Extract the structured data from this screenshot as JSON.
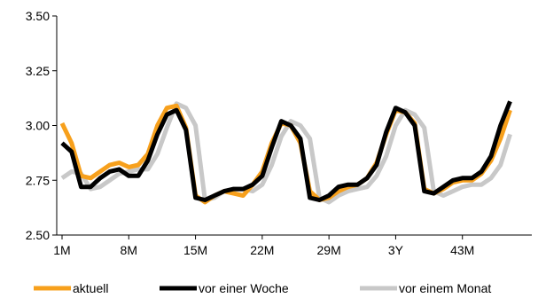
{
  "chart_data": {
    "type": "line",
    "title": "",
    "xlabel": "",
    "ylabel": "",
    "x_start": 1,
    "x_end": 50,
    "xticks": [
      {
        "x": 1,
        "label": "1M"
      },
      {
        "x": 8,
        "label": "8M"
      },
      {
        "x": 15,
        "label": "15M"
      },
      {
        "x": 22,
        "label": "22M"
      },
      {
        "x": 29,
        "label": "29M"
      },
      {
        "x": 36,
        "label": "3Y"
      },
      {
        "x": 43,
        "label": "43M"
      }
    ],
    "ylim": [
      2.5,
      3.5
    ],
    "yticks": [
      2.5,
      2.75,
      3.0,
      3.25,
      3.5
    ],
    "ytick_labels": [
      "2.50",
      "2.75",
      "3.00",
      "3.25",
      "3.50"
    ],
    "grid": false,
    "legend_position": "bottom",
    "series": [
      {
        "name": "aktuell",
        "color": "#F7A01C",
        "points": [
          [
            1,
            3.01
          ],
          [
            2,
            2.92
          ],
          [
            3,
            2.77
          ],
          [
            4,
            2.76
          ],
          [
            5,
            2.79
          ],
          [
            6,
            2.82
          ],
          [
            7,
            2.83
          ],
          [
            8,
            2.81
          ],
          [
            9,
            2.82
          ],
          [
            10,
            2.87
          ],
          [
            11,
            3.0
          ],
          [
            12,
            3.08
          ],
          [
            13,
            3.09
          ],
          [
            14,
            2.99
          ],
          [
            15,
            2.68
          ],
          [
            16,
            2.65
          ],
          [
            17,
            2.68
          ],
          [
            18,
            2.7
          ],
          [
            19,
            2.69
          ],
          [
            20,
            2.68
          ],
          [
            21,
            2.73
          ],
          [
            22,
            2.79
          ],
          [
            23,
            2.92
          ],
          [
            24,
            3.01
          ],
          [
            25,
            3.0
          ],
          [
            26,
            2.92
          ],
          [
            27,
            2.7
          ],
          [
            28,
            2.66
          ],
          [
            29,
            2.67
          ],
          [
            30,
            2.7
          ],
          [
            31,
            2.72
          ],
          [
            32,
            2.73
          ],
          [
            33,
            2.76
          ],
          [
            34,
            2.83
          ],
          [
            35,
            2.96
          ],
          [
            36,
            3.07
          ],
          [
            37,
            3.06
          ],
          [
            38,
            3.01
          ],
          [
            39,
            2.71
          ],
          [
            40,
            2.69
          ],
          [
            41,
            2.71
          ],
          [
            42,
            2.74
          ],
          [
            43,
            2.75
          ],
          [
            44,
            2.75
          ],
          [
            45,
            2.78
          ],
          [
            46,
            2.84
          ],
          [
            47,
            2.94
          ],
          [
            48,
            3.07
          ]
        ]
      },
      {
        "name": "vor einer Woche",
        "color": "#000000",
        "points": [
          [
            1,
            2.92
          ],
          [
            2,
            2.88
          ],
          [
            3,
            2.72
          ],
          [
            4,
            2.72
          ],
          [
            5,
            2.76
          ],
          [
            6,
            2.79
          ],
          [
            7,
            2.8
          ],
          [
            8,
            2.77
          ],
          [
            9,
            2.77
          ],
          [
            10,
            2.84
          ],
          [
            11,
            2.96
          ],
          [
            12,
            3.05
          ],
          [
            13,
            3.07
          ],
          [
            14,
            2.98
          ],
          [
            15,
            2.67
          ],
          [
            16,
            2.66
          ],
          [
            17,
            2.68
          ],
          [
            18,
            2.7
          ],
          [
            19,
            2.71
          ],
          [
            20,
            2.71
          ],
          [
            21,
            2.73
          ],
          [
            22,
            2.77
          ],
          [
            23,
            2.9
          ],
          [
            24,
            3.02
          ],
          [
            25,
            3.0
          ],
          [
            26,
            2.94
          ],
          [
            27,
            2.67
          ],
          [
            28,
            2.66
          ],
          [
            29,
            2.68
          ],
          [
            30,
            2.72
          ],
          [
            31,
            2.73
          ],
          [
            32,
            2.73
          ],
          [
            33,
            2.76
          ],
          [
            34,
            2.82
          ],
          [
            35,
            2.97
          ],
          [
            36,
            3.08
          ],
          [
            37,
            3.06
          ],
          [
            38,
            3.0
          ],
          [
            39,
            2.7
          ],
          [
            40,
            2.69
          ],
          [
            41,
            2.72
          ],
          [
            42,
            2.75
          ],
          [
            43,
            2.76
          ],
          [
            44,
            2.76
          ],
          [
            45,
            2.79
          ],
          [
            46,
            2.86
          ],
          [
            47,
            3.0
          ],
          [
            48,
            3.11
          ]
        ]
      },
      {
        "name": "vor einem Monat",
        "color": "#C8C8C8",
        "points": [
          [
            1,
            2.76
          ],
          [
            2,
            2.79
          ],
          [
            3,
            2.78
          ],
          [
            4,
            2.71
          ],
          [
            5,
            2.72
          ],
          [
            6,
            2.75
          ],
          [
            7,
            2.78
          ],
          [
            8,
            2.79
          ],
          [
            9,
            2.8
          ],
          [
            10,
            2.8
          ],
          [
            11,
            2.87
          ],
          [
            12,
            2.99
          ],
          [
            13,
            3.1
          ],
          [
            14,
            3.08
          ],
          [
            15,
            3.0
          ],
          [
            16,
            2.66
          ],
          [
            17,
            2.67
          ],
          [
            18,
            2.7
          ],
          [
            19,
            2.71
          ],
          [
            20,
            2.71
          ],
          [
            21,
            2.7
          ],
          [
            22,
            2.73
          ],
          [
            23,
            2.82
          ],
          [
            24,
            2.95
          ],
          [
            25,
            3.02
          ],
          [
            26,
            3.0
          ],
          [
            27,
            2.94
          ],
          [
            28,
            2.67
          ],
          [
            29,
            2.65
          ],
          [
            30,
            2.68
          ],
          [
            31,
            2.7
          ],
          [
            32,
            2.71
          ],
          [
            33,
            2.72
          ],
          [
            34,
            2.77
          ],
          [
            35,
            2.86
          ],
          [
            36,
            3.0
          ],
          [
            37,
            3.07
          ],
          [
            38,
            3.05
          ],
          [
            39,
            2.99
          ],
          [
            40,
            2.7
          ],
          [
            41,
            2.68
          ],
          [
            42,
            2.7
          ],
          [
            43,
            2.72
          ],
          [
            44,
            2.73
          ],
          [
            45,
            2.73
          ],
          [
            46,
            2.76
          ],
          [
            47,
            2.82
          ],
          [
            48,
            2.96
          ]
        ]
      }
    ]
  }
}
